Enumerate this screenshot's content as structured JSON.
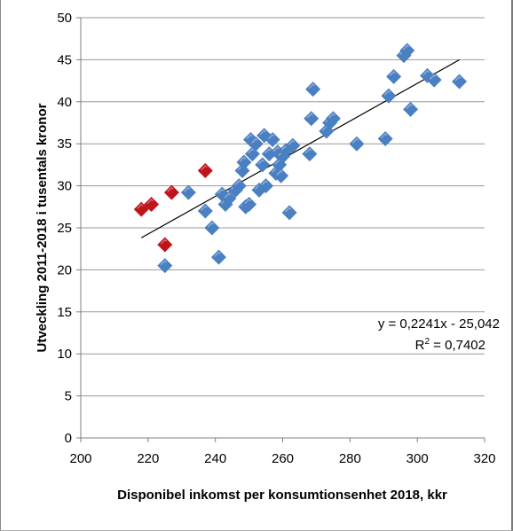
{
  "chart_data": {
    "type": "scatter",
    "xlabel": "Disponibel inkomst per konsumtionsenhet 2018, kkr",
    "ylabel": "Utveckling 2011-2018 i tusentals kronor",
    "xlim": [
      200,
      320
    ],
    "ylim": [
      0,
      50
    ],
    "x_ticks": [
      "200",
      "220",
      "240",
      "260",
      "280",
      "300",
      "320"
    ],
    "y_ticks": [
      "0",
      "5",
      "10",
      "15",
      "20",
      "25",
      "30",
      "35",
      "40",
      "45",
      "50"
    ],
    "grid": "horizontal",
    "colors": {
      "blue": "#4a7fc1",
      "red": "#c0141c",
      "trend": "#000000"
    },
    "series": [
      {
        "color": "#4a7fc1",
        "points": [
          [
            225,
            20.5
          ],
          [
            232,
            29.2
          ],
          [
            237,
            27.0
          ],
          [
            239,
            25.0
          ],
          [
            241,
            21.5
          ],
          [
            242,
            29.0
          ],
          [
            243,
            27.8
          ],
          [
            244,
            28.5
          ],
          [
            246,
            29.5
          ],
          [
            247,
            30.0
          ],
          [
            248,
            31.8
          ],
          [
            248.5,
            32.8
          ],
          [
            249,
            27.5
          ],
          [
            250,
            27.8
          ],
          [
            250.5,
            35.5
          ],
          [
            251,
            33.8
          ],
          [
            252,
            35.0
          ],
          [
            253,
            29.5
          ],
          [
            254,
            32.5
          ],
          [
            254.5,
            36.0
          ],
          [
            255,
            30.0
          ],
          [
            256,
            33.8
          ],
          [
            257,
            35.5
          ],
          [
            258,
            31.5
          ],
          [
            258.5,
            34.0
          ],
          [
            259,
            32.5
          ],
          [
            259.5,
            31.2
          ],
          [
            260,
            33.5
          ],
          [
            261,
            34.2
          ],
          [
            262,
            26.8
          ],
          [
            263,
            34.8
          ],
          [
            268,
            33.8
          ],
          [
            268.5,
            38.0
          ],
          [
            269,
            41.5
          ],
          [
            273,
            36.5
          ],
          [
            274,
            37.5
          ],
          [
            275,
            38.0
          ],
          [
            282,
            35.0
          ],
          [
            290.5,
            35.6
          ],
          [
            291.5,
            40.7
          ],
          [
            293,
            43.0
          ],
          [
            296,
            45.5
          ],
          [
            297,
            46.1
          ],
          [
            298,
            39.1
          ],
          [
            303,
            43.1
          ],
          [
            305,
            42.6
          ],
          [
            312.5,
            42.4
          ]
        ]
      },
      {
        "color": "#c0141c",
        "points": [
          [
            218,
            27.2
          ],
          [
            221,
            27.8
          ],
          [
            225,
            23.0
          ],
          [
            227,
            29.2
          ],
          [
            237,
            31.8
          ]
        ]
      }
    ],
    "trendline": {
      "x_range": [
        218,
        312.5
      ],
      "equation": "y = 0,2241x - 25,042",
      "r2_prefix": "R",
      "r2_exp": "2",
      "r2_value": " = 0,7402"
    }
  }
}
